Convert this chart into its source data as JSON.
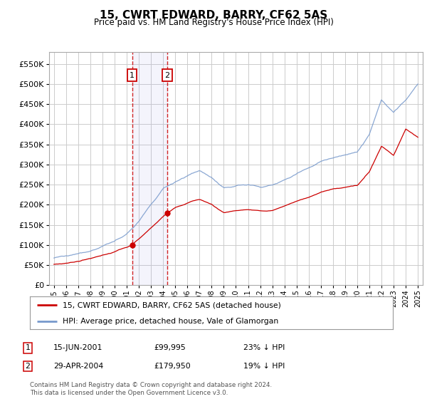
{
  "title": "15, CWRT EDWARD, BARRY, CF62 5AS",
  "subtitle": "Price paid vs. HM Land Registry's House Price Index (HPI)",
  "hpi_color": "#7799cc",
  "price_color": "#cc0000",
  "background_color": "#ffffff",
  "plot_bg_color": "#ffffff",
  "grid_color": "#cccccc",
  "sale1_date_num": 2001.45,
  "sale1_price": 99995,
  "sale1_date_str": "15-JUN-2001",
  "sale1_price_str": "£99,995",
  "sale1_hpi_str": "23% ↓ HPI",
  "sale2_date_num": 2004.33,
  "sale2_price": 179950,
  "sale2_date_str": "29-APR-2004",
  "sale2_price_str": "£179,950",
  "sale2_hpi_str": "19% ↓ HPI",
  "ylim": [
    0,
    580000
  ],
  "yticks": [
    0,
    50000,
    100000,
    150000,
    200000,
    250000,
    300000,
    350000,
    400000,
    450000,
    500000,
    550000
  ],
  "xlim_left": 1994.6,
  "xlim_right": 2025.4,
  "xticks": [
    1995,
    1996,
    1997,
    1998,
    1999,
    2000,
    2001,
    2002,
    2003,
    2004,
    2005,
    2006,
    2007,
    2008,
    2009,
    2010,
    2011,
    2012,
    2013,
    2014,
    2015,
    2016,
    2017,
    2018,
    2019,
    2020,
    2021,
    2022,
    2023,
    2024,
    2025
  ],
  "legend_label_price": "15, CWRT EDWARD, BARRY, CF62 5AS (detached house)",
  "legend_label_hpi": "HPI: Average price, detached house, Vale of Glamorgan",
  "footer": "Contains HM Land Registry data © Crown copyright and database right 2024.\nThis data is licensed under the Open Government Licence v3.0.",
  "hpi_knots_x": [
    1995,
    1996,
    1997,
    1998,
    1999,
    2000,
    2001,
    2002,
    2003,
    2004,
    2005,
    2006,
    2007,
    2008,
    2009,
    2010,
    2011,
    2012,
    2013,
    2014,
    2015,
    2016,
    2017,
    2018,
    2019,
    2020,
    2021,
    2022,
    2023,
    2024,
    2025
  ],
  "hpi_knots_y": [
    68000,
    72000,
    78000,
    87000,
    97000,
    110000,
    128000,
    158000,
    200000,
    240000,
    258000,
    272000,
    285000,
    268000,
    240000,
    248000,
    250000,
    245000,
    248000,
    262000,
    278000,
    292000,
    308000,
    318000,
    325000,
    330000,
    375000,
    460000,
    430000,
    460000,
    500000
  ],
  "price_knots_x": [
    1995,
    1996,
    1997,
    1998,
    1999,
    2000,
    2001.45,
    2004.33,
    2005,
    2006,
    2007,
    2008,
    2009,
    2010,
    2011,
    2012,
    2013,
    2014,
    2015,
    2016,
    2017,
    2018,
    2019,
    2020,
    2021,
    2022,
    2023,
    2024,
    2025
  ],
  "price_knots_y": [
    52000,
    55000,
    59000,
    66000,
    74000,
    84000,
    99995,
    179950,
    193000,
    204000,
    214000,
    201000,
    180000,
    186000,
    188000,
    184000,
    186000,
    197000,
    209000,
    219000,
    231000,
    239000,
    244000,
    248000,
    282000,
    346000,
    323000,
    388000,
    368000
  ]
}
